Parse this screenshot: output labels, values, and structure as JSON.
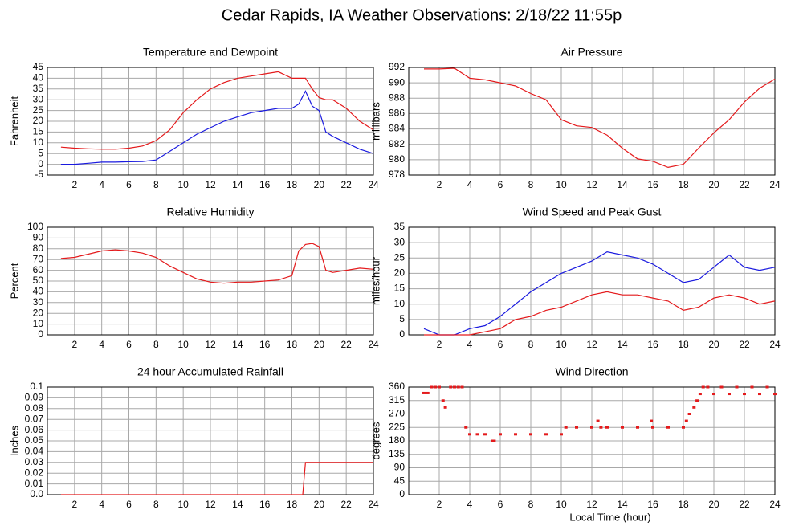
{
  "title": "Cedar Rapids, IA Weather Observations: 2/18/22 11:55p",
  "xlabel": "Local Time (hour)",
  "chart_data": [
    {
      "type": "line",
      "title": "Temperature and Dewpoint",
      "ylabel": "Fahrenheit",
      "x": [
        1,
        2,
        3,
        4,
        5,
        6,
        7,
        8,
        9,
        10,
        11,
        12,
        13,
        14,
        15,
        16,
        17,
        18,
        18.5,
        19,
        19.5,
        20,
        20.5,
        21,
        22,
        23,
        24
      ],
      "series": [
        {
          "color": "#e41a1c",
          "values": [
            8,
            7.5,
            7.2,
            7,
            7,
            7.5,
            8.5,
            11,
            16,
            24,
            30,
            35,
            38,
            40,
            41,
            42,
            43,
            40,
            40,
            40,
            35,
            31,
            30,
            30,
            26,
            20,
            16
          ]
        },
        {
          "color": "#1a1adf",
          "values": [
            0,
            0,
            0.5,
            1,
            1,
            1.2,
            1.3,
            2,
            6,
            10,
            14,
            17,
            20,
            22,
            24,
            25,
            26,
            26,
            28,
            34,
            27,
            25,
            15,
            13,
            10,
            7,
            5
          ]
        }
      ],
      "xlim": [
        0,
        24
      ],
      "xticks": [
        2,
        4,
        6,
        8,
        10,
        12,
        14,
        16,
        18,
        20,
        22,
        24
      ],
      "ylim": [
        -5,
        45
      ],
      "yticks": [
        -5,
        0,
        5,
        10,
        15,
        20,
        25,
        30,
        35,
        40,
        45
      ],
      "grid": true
    },
    {
      "type": "line",
      "title": "Air Pressure",
      "ylabel": "millibars",
      "x": [
        1,
        2,
        3,
        4,
        5,
        6,
        7,
        8,
        9,
        10,
        11,
        12,
        13,
        14,
        15,
        16,
        17,
        18,
        19,
        20,
        21,
        22,
        23,
        24
      ],
      "series": [
        {
          "color": "#e41a1c",
          "values": [
            991.8,
            991.8,
            991.9,
            990.6,
            990.4,
            990,
            989.6,
            988.6,
            987.8,
            985.2,
            984.4,
            984.2,
            983.2,
            981.5,
            980.1,
            979.8,
            979,
            979.4,
            981.5,
            983.5,
            985.2,
            987.5,
            989.3,
            990.5
          ]
        }
      ],
      "xlim": [
        0,
        24
      ],
      "xticks": [
        2,
        4,
        6,
        8,
        10,
        12,
        14,
        16,
        18,
        20,
        22,
        24
      ],
      "ylim": [
        978,
        992
      ],
      "yticks": [
        978,
        980,
        982,
        984,
        986,
        988,
        990,
        992
      ],
      "grid": true
    },
    {
      "type": "line",
      "title": "Relative Humidity",
      "ylabel": "Percent",
      "x": [
        1,
        2,
        3,
        4,
        5,
        6,
        7,
        8,
        9,
        10,
        11,
        12,
        13,
        14,
        15,
        16,
        17,
        18,
        18.5,
        19,
        19.5,
        20,
        20.5,
        21,
        22,
        23,
        24
      ],
      "series": [
        {
          "color": "#e41a1c",
          "values": [
            71,
            72,
            75,
            78,
            79,
            78,
            76,
            72,
            64,
            58,
            52,
            49,
            48,
            49,
            49,
            50,
            51,
            55,
            78,
            84,
            85,
            82,
            60,
            58,
            60,
            62,
            61
          ]
        }
      ],
      "xlim": [
        0,
        24
      ],
      "xticks": [
        2,
        4,
        6,
        8,
        10,
        12,
        14,
        16,
        18,
        20,
        22,
        24
      ],
      "ylim": [
        0,
        100
      ],
      "yticks": [
        0,
        10,
        20,
        30,
        40,
        50,
        60,
        70,
        80,
        90,
        100
      ],
      "grid": true
    },
    {
      "type": "line",
      "title": "Wind Speed and Peak Gust",
      "ylabel": "miles/hour",
      "x": [
        1,
        2,
        3,
        4,
        5,
        6,
        7,
        8,
        9,
        10,
        11,
        12,
        13,
        14,
        15,
        16,
        17,
        18,
        19,
        20,
        21,
        22,
        23,
        24
      ],
      "series": [
        {
          "color": "#1a1adf",
          "values": [
            2,
            0,
            0,
            2,
            3,
            6,
            10,
            14,
            17,
            20,
            22,
            24,
            27,
            26,
            25,
            23,
            20,
            17,
            18,
            22,
            26,
            22,
            21,
            22
          ]
        },
        {
          "color": "#e41a1c",
          "values": [
            0,
            0,
            0,
            0,
            1,
            2,
            5,
            6,
            8,
            9,
            11,
            13,
            14,
            13,
            13,
            12,
            11,
            8,
            9,
            12,
            13,
            12,
            10,
            11
          ]
        }
      ],
      "xlim": [
        0,
        24
      ],
      "xticks": [
        2,
        4,
        6,
        8,
        10,
        12,
        14,
        16,
        18,
        20,
        22,
        24
      ],
      "ylim": [
        0,
        35
      ],
      "yticks": [
        0,
        5,
        10,
        15,
        20,
        25,
        30,
        35
      ],
      "grid": true
    },
    {
      "type": "line",
      "title": "24 hour Accumulated Rainfall",
      "ylabel": "Inches",
      "x": [
        1,
        18.8,
        19,
        24
      ],
      "series": [
        {
          "color": "#e41a1c",
          "values": [
            0,
            0,
            0.03,
            0.03
          ]
        }
      ],
      "xlim": [
        0,
        24
      ],
      "xticks": [
        2,
        4,
        6,
        8,
        10,
        12,
        14,
        16,
        18,
        20,
        22,
        24
      ],
      "ylim": [
        0,
        0.1
      ],
      "yticks": [
        {
          "value": 0,
          "label": "0.0"
        },
        0.01,
        0.02,
        0.03,
        0.04,
        0.05,
        0.06,
        0.07,
        0.08,
        0.09,
        0.1
      ],
      "grid": true
    },
    {
      "type": "scatter",
      "title": "Wind Direction",
      "ylabel": "degrees",
      "x": [
        1,
        1.25,
        1.5,
        1.75,
        2,
        2.25,
        2.4,
        2.75,
        3,
        3.25,
        3.5,
        3.75,
        4,
        4.5,
        5,
        5.5,
        5.6,
        6,
        7,
        8,
        9,
        10,
        10.3,
        11,
        12,
        12.4,
        12.6,
        13,
        14,
        15,
        15.9,
        16,
        17,
        18,
        18.2,
        18.4,
        18.7,
        18.9,
        19.1,
        19.3,
        19.6,
        20,
        20.5,
        21,
        21.5,
        22,
        22.5,
        23,
        23.5,
        24
      ],
      "series": [
        {
          "color": "#e41a1c",
          "values": [
            340,
            340,
            360,
            360,
            360,
            315,
            292,
            360,
            360,
            360,
            360,
            225,
            202,
            202,
            202,
            180,
            180,
            202,
            202,
            202,
            202,
            202,
            225,
            225,
            225,
            247,
            225,
            225,
            225,
            225,
            247,
            225,
            225,
            225,
            247,
            270,
            292,
            315,
            337,
            360,
            360,
            337,
            360,
            337,
            360,
            337,
            360,
            337,
            360,
            337
          ]
        }
      ],
      "xlim": [
        0,
        24
      ],
      "xticks": [
        2,
        4,
        6,
        8,
        10,
        12,
        14,
        16,
        18,
        20,
        22,
        24
      ],
      "ylim": [
        0,
        360
      ],
      "yticks": [
        0,
        45,
        90,
        135,
        180,
        225,
        270,
        315,
        360
      ],
      "grid": true
    }
  ]
}
